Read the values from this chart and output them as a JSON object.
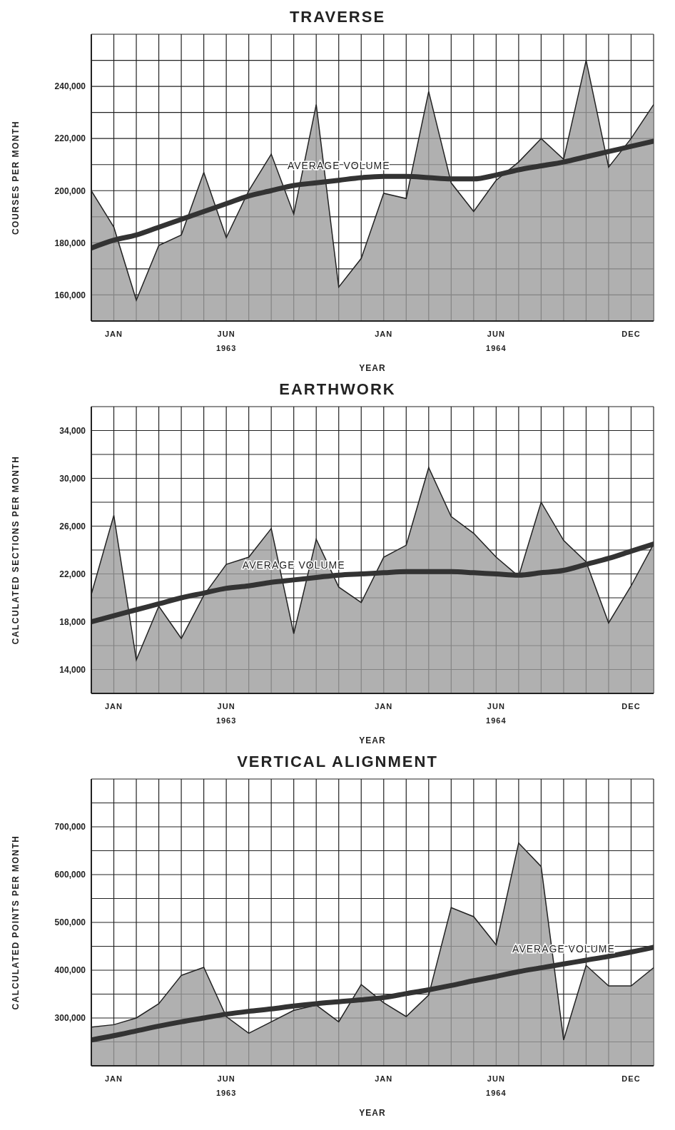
{
  "chart_data": [
    {
      "type": "area",
      "title": "TRAVERSE",
      "xlabel": "YEAR",
      "ylabel": "COURSES PER MONTH",
      "grid": true,
      "categories": [
        null,
        "JAN",
        null,
        null,
        null,
        null,
        "JUN 1963",
        null,
        null,
        null,
        null,
        null,
        null,
        "JAN",
        null,
        null,
        null,
        null,
        "JUN 1964",
        null,
        null,
        null,
        null,
        null,
        "DEC",
        null
      ],
      "ylim": [
        150000,
        260000
      ],
      "yticks": [
        {
          "value": 150000,
          "label": null
        },
        {
          "value": 160000,
          "label": "160,000"
        },
        {
          "value": 170000,
          "label": null
        },
        {
          "value": 180000,
          "label": "180,000"
        },
        {
          "value": 190000,
          "label": null
        },
        {
          "value": 200000,
          "label": "200,000"
        },
        {
          "value": 210000,
          "label": null
        },
        {
          "value": 220000,
          "label": "220,000"
        },
        {
          "value": 230000,
          "label": null
        },
        {
          "value": 240000,
          "label": "240,000"
        },
        {
          "value": 250000,
          "label": null
        },
        {
          "value": 260000,
          "label": null
        }
      ],
      "series": [
        {
          "type": "area",
          "color": "#9c9c9c",
          "values": [
            200000,
            186000,
            158000,
            179000,
            183000,
            207000,
            182000,
            200000,
            214000,
            191000,
            233000,
            163000,
            174000,
            199000,
            197000,
            238000,
            203000,
            192000,
            204000,
            211000,
            220000,
            212000,
            250000,
            209000,
            220000,
            233000
          ]
        },
        {
          "type": "line",
          "name": "AVERAGE VOLUME",
          "color": "#333333",
          "values": [
            178000,
            181000,
            183000,
            186000,
            189000,
            192000,
            195000,
            198000,
            200000,
            202000,
            203000,
            204000,
            205000,
            205500,
            205500,
            205000,
            204500,
            204500,
            206000,
            208000,
            209500,
            211000,
            213000,
            215000,
            217000,
            219000
          ]
        }
      ]
    },
    {
      "type": "area",
      "title": "EARTHWORK",
      "xlabel": "YEAR",
      "ylabel": "CALCULATED SECTIONS PER MONTH",
      "grid": true,
      "categories": [
        null,
        "JAN",
        null,
        null,
        null,
        null,
        "JUN 1963",
        null,
        null,
        null,
        null,
        null,
        null,
        "JAN",
        null,
        null,
        null,
        null,
        "JUN 1964",
        null,
        null,
        null,
        null,
        null,
        "DEC",
        null
      ],
      "ylim": [
        12000,
        36000
      ],
      "yticks": [
        {
          "value": 12000,
          "label": null
        },
        {
          "value": 14000,
          "label": "14,000"
        },
        {
          "value": 16000,
          "label": null
        },
        {
          "value": 18000,
          "label": "18,000"
        },
        {
          "value": 20000,
          "label": null
        },
        {
          "value": 22000,
          "label": "22,000"
        },
        {
          "value": 24000,
          "label": null
        },
        {
          "value": 26000,
          "label": "26,000"
        },
        {
          "value": 28000,
          "label": null
        },
        {
          "value": 30000,
          "label": "30,000"
        },
        {
          "value": 32000,
          "label": null
        },
        {
          "value": 34000,
          "label": "34,000"
        },
        {
          "value": 36000,
          "label": null
        }
      ],
      "series": [
        {
          "type": "area",
          "color": "#9c9c9c",
          "values": [
            20300,
            26900,
            14800,
            19300,
            16600,
            20200,
            22800,
            23400,
            25800,
            17000,
            24900,
            20900,
            19600,
            23400,
            24400,
            30900,
            26800,
            25400,
            23400,
            21800,
            28000,
            24800,
            23000,
            17900,
            21000,
            24500
          ]
        },
        {
          "type": "line",
          "name": "AVERAGE VOLUME",
          "color": "#333333",
          "values": [
            18000,
            18500,
            19000,
            19500,
            20000,
            20400,
            20800,
            21000,
            21300,
            21500,
            21700,
            21900,
            22000,
            22100,
            22200,
            22200,
            22200,
            22100,
            22000,
            21900,
            22100,
            22300,
            22800,
            23300,
            23900,
            24500
          ]
        }
      ]
    },
    {
      "type": "area",
      "title": "VERTICAL ALIGNMENT",
      "xlabel": "YEAR",
      "ylabel": "CALCULATED POINTS PER MONTH",
      "grid": true,
      "categories": [
        null,
        "JAN",
        null,
        null,
        null,
        null,
        "JUN 1963",
        null,
        null,
        null,
        null,
        null,
        null,
        "JAN",
        null,
        null,
        null,
        null,
        "JUN 1964",
        null,
        null,
        null,
        null,
        null,
        "DEC",
        null
      ],
      "ylim": [
        200000,
        800000
      ],
      "yticks": [
        {
          "value": 200000,
          "label": null
        },
        {
          "value": 250000,
          "label": null
        },
        {
          "value": 300000,
          "label": "300,000"
        },
        {
          "value": 350000,
          "label": null
        },
        {
          "value": 400000,
          "label": "400,000"
        },
        {
          "value": 450000,
          "label": null
        },
        {
          "value": 500000,
          "label": "500,000"
        },
        {
          "value": 550000,
          "label": null
        },
        {
          "value": 600000,
          "label": "600,000"
        },
        {
          "value": 650000,
          "label": null
        },
        {
          "value": 700000,
          "label": "700,000"
        },
        {
          "value": 750000,
          "label": null
        },
        {
          "value": 800000,
          "label": null
        }
      ],
      "series": [
        {
          "type": "area",
          "color": "#9c9c9c",
          "values": [
            281000,
            286000,
            300000,
            330000,
            389000,
            406000,
            303000,
            268000,
            292000,
            316000,
            327000,
            292000,
            370000,
            332000,
            303000,
            348000,
            531000,
            512000,
            453000,
            666000,
            617000,
            254000,
            410000,
            367000,
            367000,
            405000
          ]
        },
        {
          "type": "line",
          "name": "AVERAGE VOLUME",
          "color": "#333333",
          "values": [
            254000,
            263000,
            273000,
            283000,
            292000,
            300000,
            308000,
            314000,
            319000,
            325000,
            330000,
            334000,
            338000,
            343000,
            351000,
            359000,
            368000,
            378000,
            387000,
            397000,
            405000,
            413000,
            421000,
            429000,
            438000,
            448000
          ]
        }
      ]
    }
  ]
}
